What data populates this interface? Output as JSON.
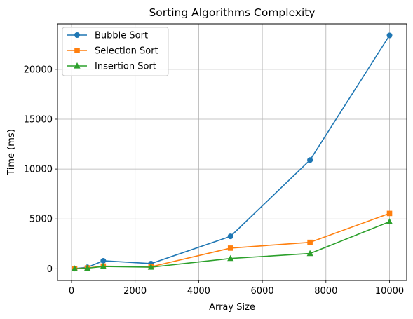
{
  "chart_data": {
    "type": "line",
    "title": "Sorting Algorithms Complexity",
    "xlabel": "Array Size",
    "ylabel": "Time (ms)",
    "x": [
      100,
      500,
      1000,
      2500,
      5000,
      7500,
      10000
    ],
    "xlim": [
      -440,
      10540
    ],
    "ylim": [
      -1170,
      24560
    ],
    "xticks": [
      0,
      2000,
      4000,
      6000,
      8000,
      10000
    ],
    "yticks": [
      0,
      5000,
      10000,
      15000,
      20000
    ],
    "grid": true,
    "legend_position": "top-left",
    "series": [
      {
        "name": "Bubble Sort",
        "color": "#1f77b4",
        "marker": "circle",
        "values": [
          20,
          150,
          800,
          520,
          3250,
          10900,
          23400
        ]
      },
      {
        "name": "Selection Sort",
        "color": "#ff7f0e",
        "marker": "square",
        "values": [
          10,
          80,
          270,
          200,
          2070,
          2650,
          5550
        ]
      },
      {
        "name": "Insertion Sort",
        "color": "#2ca02c",
        "marker": "triangle",
        "values": [
          5,
          60,
          230,
          160,
          1030,
          1530,
          4720
        ]
      }
    ]
  }
}
